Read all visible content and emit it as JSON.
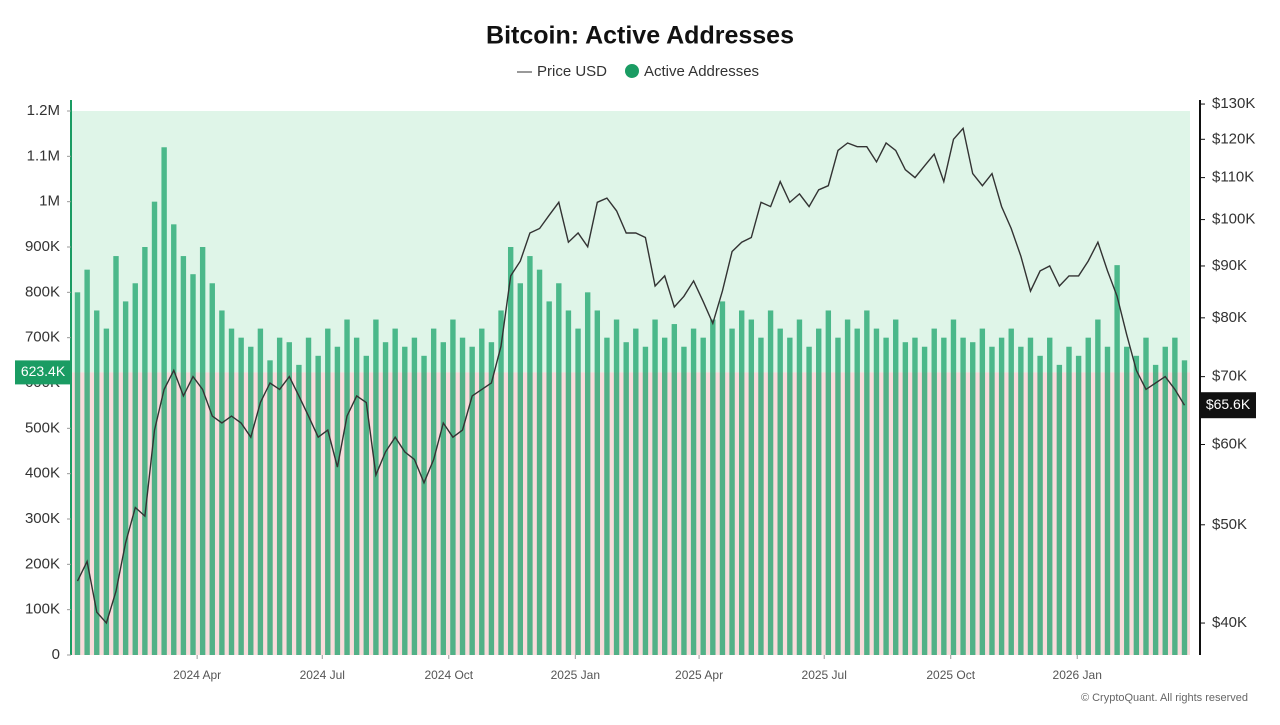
{
  "chart_data": {
    "type": "combo",
    "title": "Bitcoin: Active Addresses",
    "source": "© CryptoQuant. All rights reserved",
    "x": [
      4,
      11,
      18,
      25,
      32,
      39,
      46,
      53,
      60,
      67,
      74,
      81,
      88,
      95,
      102,
      109,
      116,
      123,
      130,
      137,
      144,
      151,
      158,
      165,
      172,
      179,
      186,
      193,
      200,
      207,
      214,
      221,
      228,
      235,
      242,
      249,
      256,
      263,
      270,
      277,
      284,
      291,
      298,
      305,
      312,
      319,
      326,
      333,
      340,
      347,
      354,
      361,
      368,
      375,
      382,
      389,
      396,
      403,
      410,
      417,
      424,
      431,
      438,
      445,
      452,
      459,
      466,
      473,
      480,
      487,
      494,
      501,
      508,
      515,
      522,
      529,
      536,
      543,
      550,
      557,
      564,
      571,
      578,
      585,
      592,
      599,
      606,
      613,
      620,
      627,
      634,
      641,
      648,
      655,
      662,
      669,
      676,
      683,
      690,
      697,
      704,
      711,
      718,
      725,
      732,
      739,
      746,
      753,
      760,
      767,
      774,
      781,
      788,
      795,
      802,
      809
    ],
    "xlim": [
      0,
      813
    ],
    "xticks": [
      {
        "value": 91,
        "label": "2024 Apr"
      },
      {
        "value": 182,
        "label": "2024 Jul"
      },
      {
        "value": 274,
        "label": "2024 Oct"
      },
      {
        "value": 366,
        "label": "2025 Jan"
      },
      {
        "value": 456,
        "label": "2025 Apr"
      },
      {
        "value": 547,
        "label": "2025 Jul"
      },
      {
        "value": 639,
        "label": "2025 Oct"
      },
      {
        "value": 731,
        "label": "2026 Jan"
      }
    ],
    "ylim": [
      0,
      1200000
    ],
    "yticks": [
      0,
      {
        "value": 100000,
        "label": "100K"
      },
      {
        "value": 200000,
        "label": "200K"
      },
      {
        "value": 300000,
        "label": "300K"
      },
      {
        "value": 400000,
        "label": "400K"
      },
      {
        "value": 500000,
        "label": "500K"
      },
      {
        "value": 600000,
        "label": "600K"
      },
      {
        "value": 700000,
        "label": "700K"
      },
      {
        "value": 800000,
        "label": "800K"
      },
      {
        "value": 900000,
        "label": "900K"
      },
      {
        "value": 1000000,
        "label": "1M"
      },
      {
        "value": 1100000,
        "label": "1.1M"
      },
      {
        "value": 1200000,
        "label": "1.2M"
      }
    ],
    "y2lim": [
      37200,
      131200
    ],
    "y2log": true,
    "y2ticks": [
      {
        "value": 40000,
        "label": "$40K"
      },
      {
        "value": 50000,
        "label": "$50K"
      },
      {
        "value": 60000,
        "label": "$60K"
      },
      {
        "value": 70000,
        "label": "$70K"
      },
      {
        "value": 80000,
        "label": "$80K"
      },
      {
        "value": 90000,
        "label": "$90K"
      },
      {
        "value": 100000,
        "label": "$100K"
      },
      {
        "value": 110000,
        "label": "$110K"
      },
      {
        "value": 120000,
        "label": "$120K"
      },
      {
        "value": 130000,
        "label": "$130K"
      }
    ],
    "reference_line": {
      "value": 623400,
      "label": "623.4K",
      "color_above": "#dff5e8",
      "color_below": "#f9dcdc",
      "label_color": "#1a9c63"
    },
    "last_price": {
      "value": 65600,
      "label": "$65.6K",
      "label_color": "#111111"
    },
    "series": [
      {
        "name": "Price USD",
        "type": "line",
        "axis": "y2",
        "color": "#333333",
        "values": [
          44000,
          46000,
          41000,
          40000,
          43000,
          48000,
          52000,
          51000,
          62000,
          68000,
          71000,
          67000,
          70000,
          68000,
          64000,
          63000,
          64000,
          63000,
          61000,
          66000,
          69000,
          68000,
          70000,
          67000,
          64000,
          61000,
          62000,
          57000,
          64000,
          67000,
          66000,
          56000,
          59000,
          61000,
          59000,
          58000,
          55000,
          58000,
          63000,
          61000,
          62000,
          67000,
          68000,
          69000,
          75000,
          88000,
          91000,
          97000,
          98000,
          101000,
          104000,
          95000,
          97000,
          94000,
          104000,
          105000,
          102000,
          97000,
          97000,
          96000,
          86000,
          88000,
          82000,
          84000,
          87000,
          83000,
          79000,
          85000,
          93000,
          95000,
          96000,
          104000,
          103000,
          109000,
          104000,
          106000,
          103000,
          107000,
          108000,
          117000,
          119000,
          118000,
          118000,
          114000,
          119000,
          117000,
          112000,
          110000,
          113000,
          116000,
          109000,
          120000,
          123000,
          111000,
          108000,
          111000,
          103000,
          98000,
          92000,
          85000,
          89000,
          90000,
          86000,
          88000,
          88000,
          91000,
          95000,
          89000,
          84000,
          77000,
          71000,
          68000,
          69000,
          70000,
          68000,
          65600
        ]
      },
      {
        "name": "Active Addresses",
        "type": "bar",
        "axis": "y",
        "color": "#1aa36b",
        "values": [
          800000,
          850000,
          760000,
          720000,
          880000,
          780000,
          820000,
          900000,
          1000000,
          1120000,
          950000,
          880000,
          840000,
          900000,
          820000,
          760000,
          720000,
          700000,
          680000,
          720000,
          650000,
          700000,
          690000,
          640000,
          700000,
          660000,
          720000,
          680000,
          740000,
          700000,
          660000,
          740000,
          690000,
          720000,
          680000,
          700000,
          660000,
          720000,
          690000,
          740000,
          700000,
          680000,
          720000,
          690000,
          760000,
          900000,
          820000,
          880000,
          850000,
          780000,
          820000,
          760000,
          720000,
          800000,
          760000,
          700000,
          740000,
          690000,
          720000,
          680000,
          740000,
          700000,
          730000,
          680000,
          720000,
          700000,
          740000,
          780000,
          720000,
          760000,
          740000,
          700000,
          760000,
          720000,
          700000,
          740000,
          680000,
          720000,
          760000,
          700000,
          740000,
          720000,
          760000,
          720000,
          700000,
          740000,
          690000,
          700000,
          680000,
          720000,
          700000,
          740000,
          700000,
          690000,
          720000,
          680000,
          700000,
          720000,
          680000,
          700000,
          660000,
          700000,
          640000,
          680000,
          660000,
          700000,
          740000,
          680000,
          860000,
          680000,
          660000,
          700000,
          640000,
          680000,
          700000,
          650000
        ]
      }
    ]
  }
}
